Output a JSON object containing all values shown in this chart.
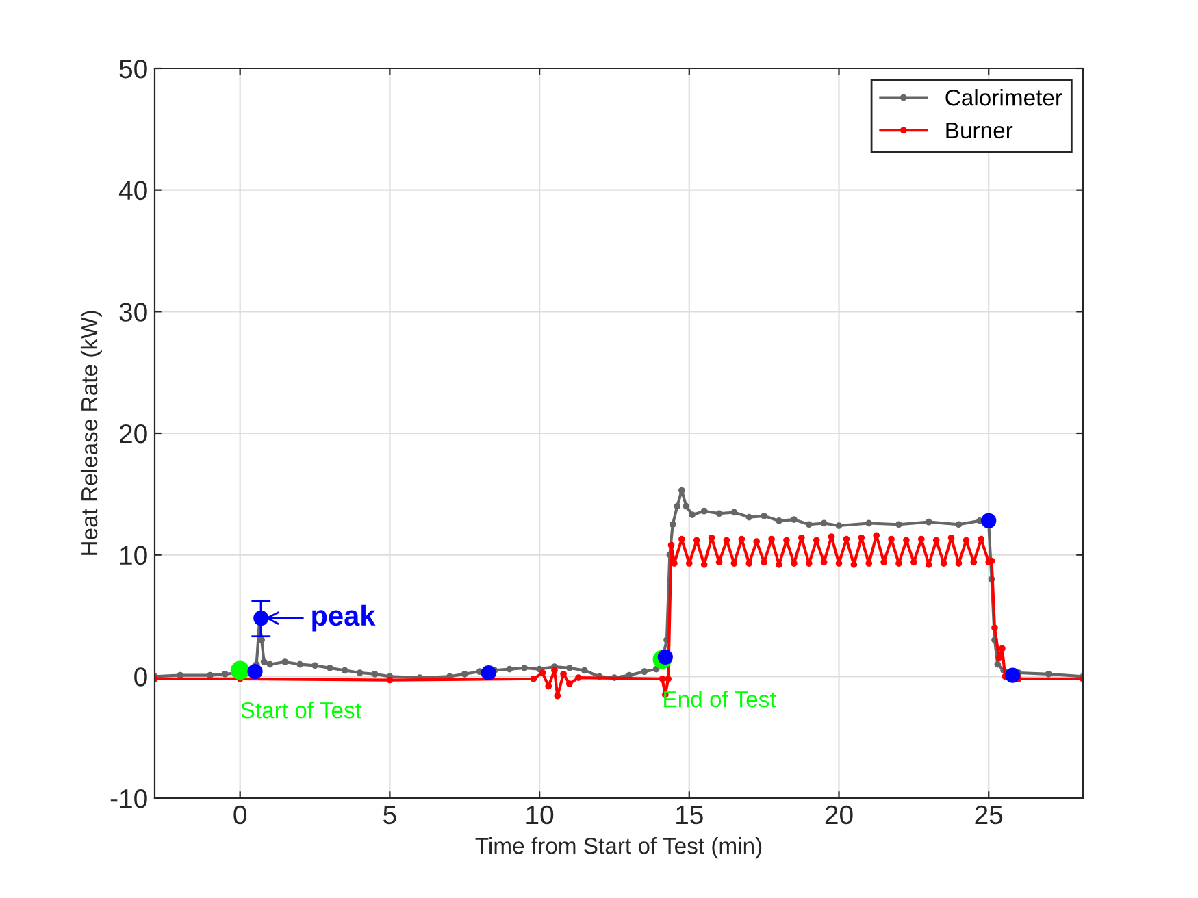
{
  "chart_data": {
    "type": "line",
    "xlabel": "Time from Start of Test (min)",
    "ylabel": "Heat Release Rate (kW)",
    "xlim": [
      -2.85,
      28.15
    ],
    "xticks": [
      0,
      5,
      10,
      15,
      20,
      25
    ],
    "ylim": [
      -10,
      50
    ],
    "yticks": [
      -10,
      0,
      10,
      20,
      30,
      40,
      50
    ],
    "grid": true,
    "legend": "top right",
    "marker": "circle",
    "line_style": "solid",
    "series": [
      {
        "name": "Calorimeter",
        "color": "#666666",
        "x": [
          -2.85,
          -2,
          -1,
          -0.5,
          0,
          0.4,
          0.55,
          0.65,
          0.72,
          0.8,
          1.0,
          1.5,
          2,
          2.5,
          3,
          3.5,
          4,
          4.5,
          5,
          6,
          7,
          7.5,
          8,
          8.5,
          9,
          9.5,
          10,
          10.5,
          11,
          11.5,
          12,
          12.5,
          13,
          13.5,
          13.9,
          14.1,
          14.25,
          14.35,
          14.45,
          14.6,
          14.75,
          14.9,
          15.1,
          15.5,
          16,
          16.5,
          17,
          17.5,
          18,
          18.5,
          19,
          19.5,
          20,
          21,
          22,
          23,
          24,
          24.7,
          25,
          25.1,
          25.2,
          25.3,
          25.5,
          26,
          27,
          28.15
        ],
        "values": [
          0.0,
          0.1,
          0.1,
          0.2,
          0.3,
          0.4,
          1.0,
          4.6,
          3.0,
          1.2,
          1.0,
          1.2,
          1.0,
          0.9,
          0.7,
          0.5,
          0.3,
          0.2,
          0.0,
          -0.1,
          0.0,
          0.2,
          0.4,
          0.5,
          0.6,
          0.7,
          0.6,
          0.8,
          0.7,
          0.5,
          0.0,
          -0.1,
          0.1,
          0.4,
          0.6,
          1.4,
          3,
          10,
          12.5,
          14,
          15.3,
          14,
          13.3,
          13.6,
          13.4,
          13.5,
          13.1,
          13.2,
          12.8,
          12.9,
          12.5,
          12.6,
          12.4,
          12.6,
          12.5,
          12.7,
          12.5,
          12.8,
          12.6,
          8,
          3,
          1.0,
          0.5,
          0.3,
          0.2,
          0.0
        ]
      },
      {
        "name": "Burner",
        "color": "#ff0000",
        "x": [
          -2.85,
          0,
          5,
          9.8,
          10.1,
          10.3,
          10.5,
          10.6,
          10.8,
          11,
          11.3,
          14.1,
          14.2,
          14.3,
          14.4,
          14.5,
          14.75,
          15.0,
          15.25,
          15.5,
          15.75,
          16.0,
          16.25,
          16.5,
          16.75,
          17.0,
          17.25,
          17.5,
          17.75,
          18.0,
          18.25,
          18.5,
          18.75,
          19.0,
          19.25,
          19.5,
          19.75,
          20.0,
          20.25,
          20.5,
          20.75,
          21.0,
          21.25,
          21.5,
          21.75,
          22.0,
          22.25,
          22.5,
          22.75,
          23.0,
          23.25,
          23.5,
          23.75,
          24.0,
          24.25,
          24.5,
          24.75,
          25.0,
          25.1,
          25.2,
          25.35,
          25.45,
          25.55,
          26,
          28.15
        ],
        "values": [
          -0.2,
          -0.2,
          -0.3,
          -0.2,
          0.3,
          -0.8,
          0.5,
          -1.6,
          0.2,
          -0.6,
          -0.1,
          -0.2,
          -1.5,
          -0.2,
          10.8,
          9.3,
          11.3,
          9.3,
          11.2,
          9.2,
          11.4,
          9.4,
          11.2,
          9.3,
          11.3,
          9.3,
          11.1,
          9.4,
          11.3,
          9.2,
          11.2,
          9.3,
          11.4,
          9.3,
          11.2,
          9.4,
          11.5,
          9.3,
          11.3,
          9.2,
          11.4,
          9.3,
          11.6,
          9.4,
          11.3,
          9.3,
          11.2,
          9.4,
          11.3,
          9.2,
          11.2,
          9.3,
          11.4,
          9.3,
          11.2,
          9.4,
          11.3,
          9.4,
          9.5,
          4,
          1.5,
          2.3,
          0,
          -0.2,
          -0.2
        ]
      },
      {
        "color": "#00ff00",
        "type": "scatter",
        "x": [
          0,
          14.1
        ],
        "values": [
          0.5,
          1.4
        ]
      },
      {
        "color": "#0000ff",
        "type": "scatter",
        "x": [
          0.5,
          0.7,
          8.3,
          14.2,
          25.0,
          25.8
        ],
        "values": [
          0.4,
          4.8,
          0.3,
          1.6,
          12.8,
          0.1
        ],
        "errors": [
          null,
          [
            3.3,
            6.2
          ],
          null,
          null,
          null,
          null
        ]
      }
    ],
    "annotations": [
      {
        "text": "peak",
        "x": 0.7,
        "y": 4.8
      },
      {
        "text": "Start of Test",
        "x": 0,
        "y": 0.5
      },
      {
        "text": "End of Test",
        "x": 14.1,
        "y": 1.4
      }
    ]
  }
}
